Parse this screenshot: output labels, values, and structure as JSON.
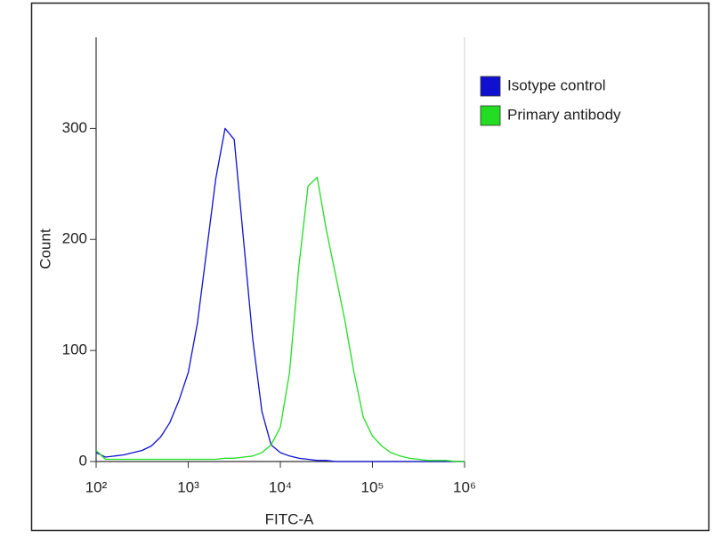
{
  "chart_data": {
    "type": "line",
    "xlabel": "FITC-A",
    "ylabel": "Count",
    "xscale": "log",
    "xlim": [
      100,
      1000000
    ],
    "xticks": [
      {
        "value": 100,
        "label": "10²"
      },
      {
        "value": 1000,
        "label": "10³"
      },
      {
        "value": 10000,
        "label": "10⁴"
      },
      {
        "value": 100000,
        "label": "10⁵"
      },
      {
        "value": 1000000,
        "label": "10⁶"
      }
    ],
    "ylim": [
      0,
      382
    ],
    "yticks": [
      0,
      100,
      200,
      300
    ],
    "legend": "upper right",
    "x": [
      100,
      126,
      158,
      200,
      251,
      316,
      398,
      501,
      631,
      794,
      1000,
      1259,
      1585,
      1995,
      2512,
      3162,
      3981,
      5012,
      6310,
      7943,
      10000,
      12589,
      15849,
      19953,
      25119,
      31623,
      39811,
      50119,
      63096,
      79433,
      100000,
      125893,
      158489,
      199526,
      251189,
      316228,
      398107,
      501187,
      630957,
      794328,
      1000000
    ],
    "series": [
      {
        "name": "Isotype control",
        "color": "#1010d0",
        "values": [
          8,
          4,
          5,
          6,
          8,
          10,
          14,
          22,
          35,
          55,
          80,
          125,
          190,
          255,
          300,
          290,
          200,
          110,
          45,
          15,
          8,
          5,
          3,
          2,
          1,
          1,
          0,
          0,
          0,
          0,
          0,
          0,
          0,
          0,
          0,
          0,
          0,
          0,
          0,
          0,
          0
        ]
      },
      {
        "name": "Primary antibody",
        "color": "#22dd22",
        "values": [
          10,
          2,
          2,
          2,
          2,
          2,
          2,
          2,
          2,
          2,
          2,
          2,
          2,
          2,
          3,
          3,
          4,
          5,
          8,
          15,
          31,
          80,
          175,
          248,
          256,
          208,
          168,
          127,
          80,
          40,
          23,
          14,
          8,
          5,
          3,
          2,
          1,
          1,
          1,
          0,
          0
        ]
      }
    ]
  }
}
